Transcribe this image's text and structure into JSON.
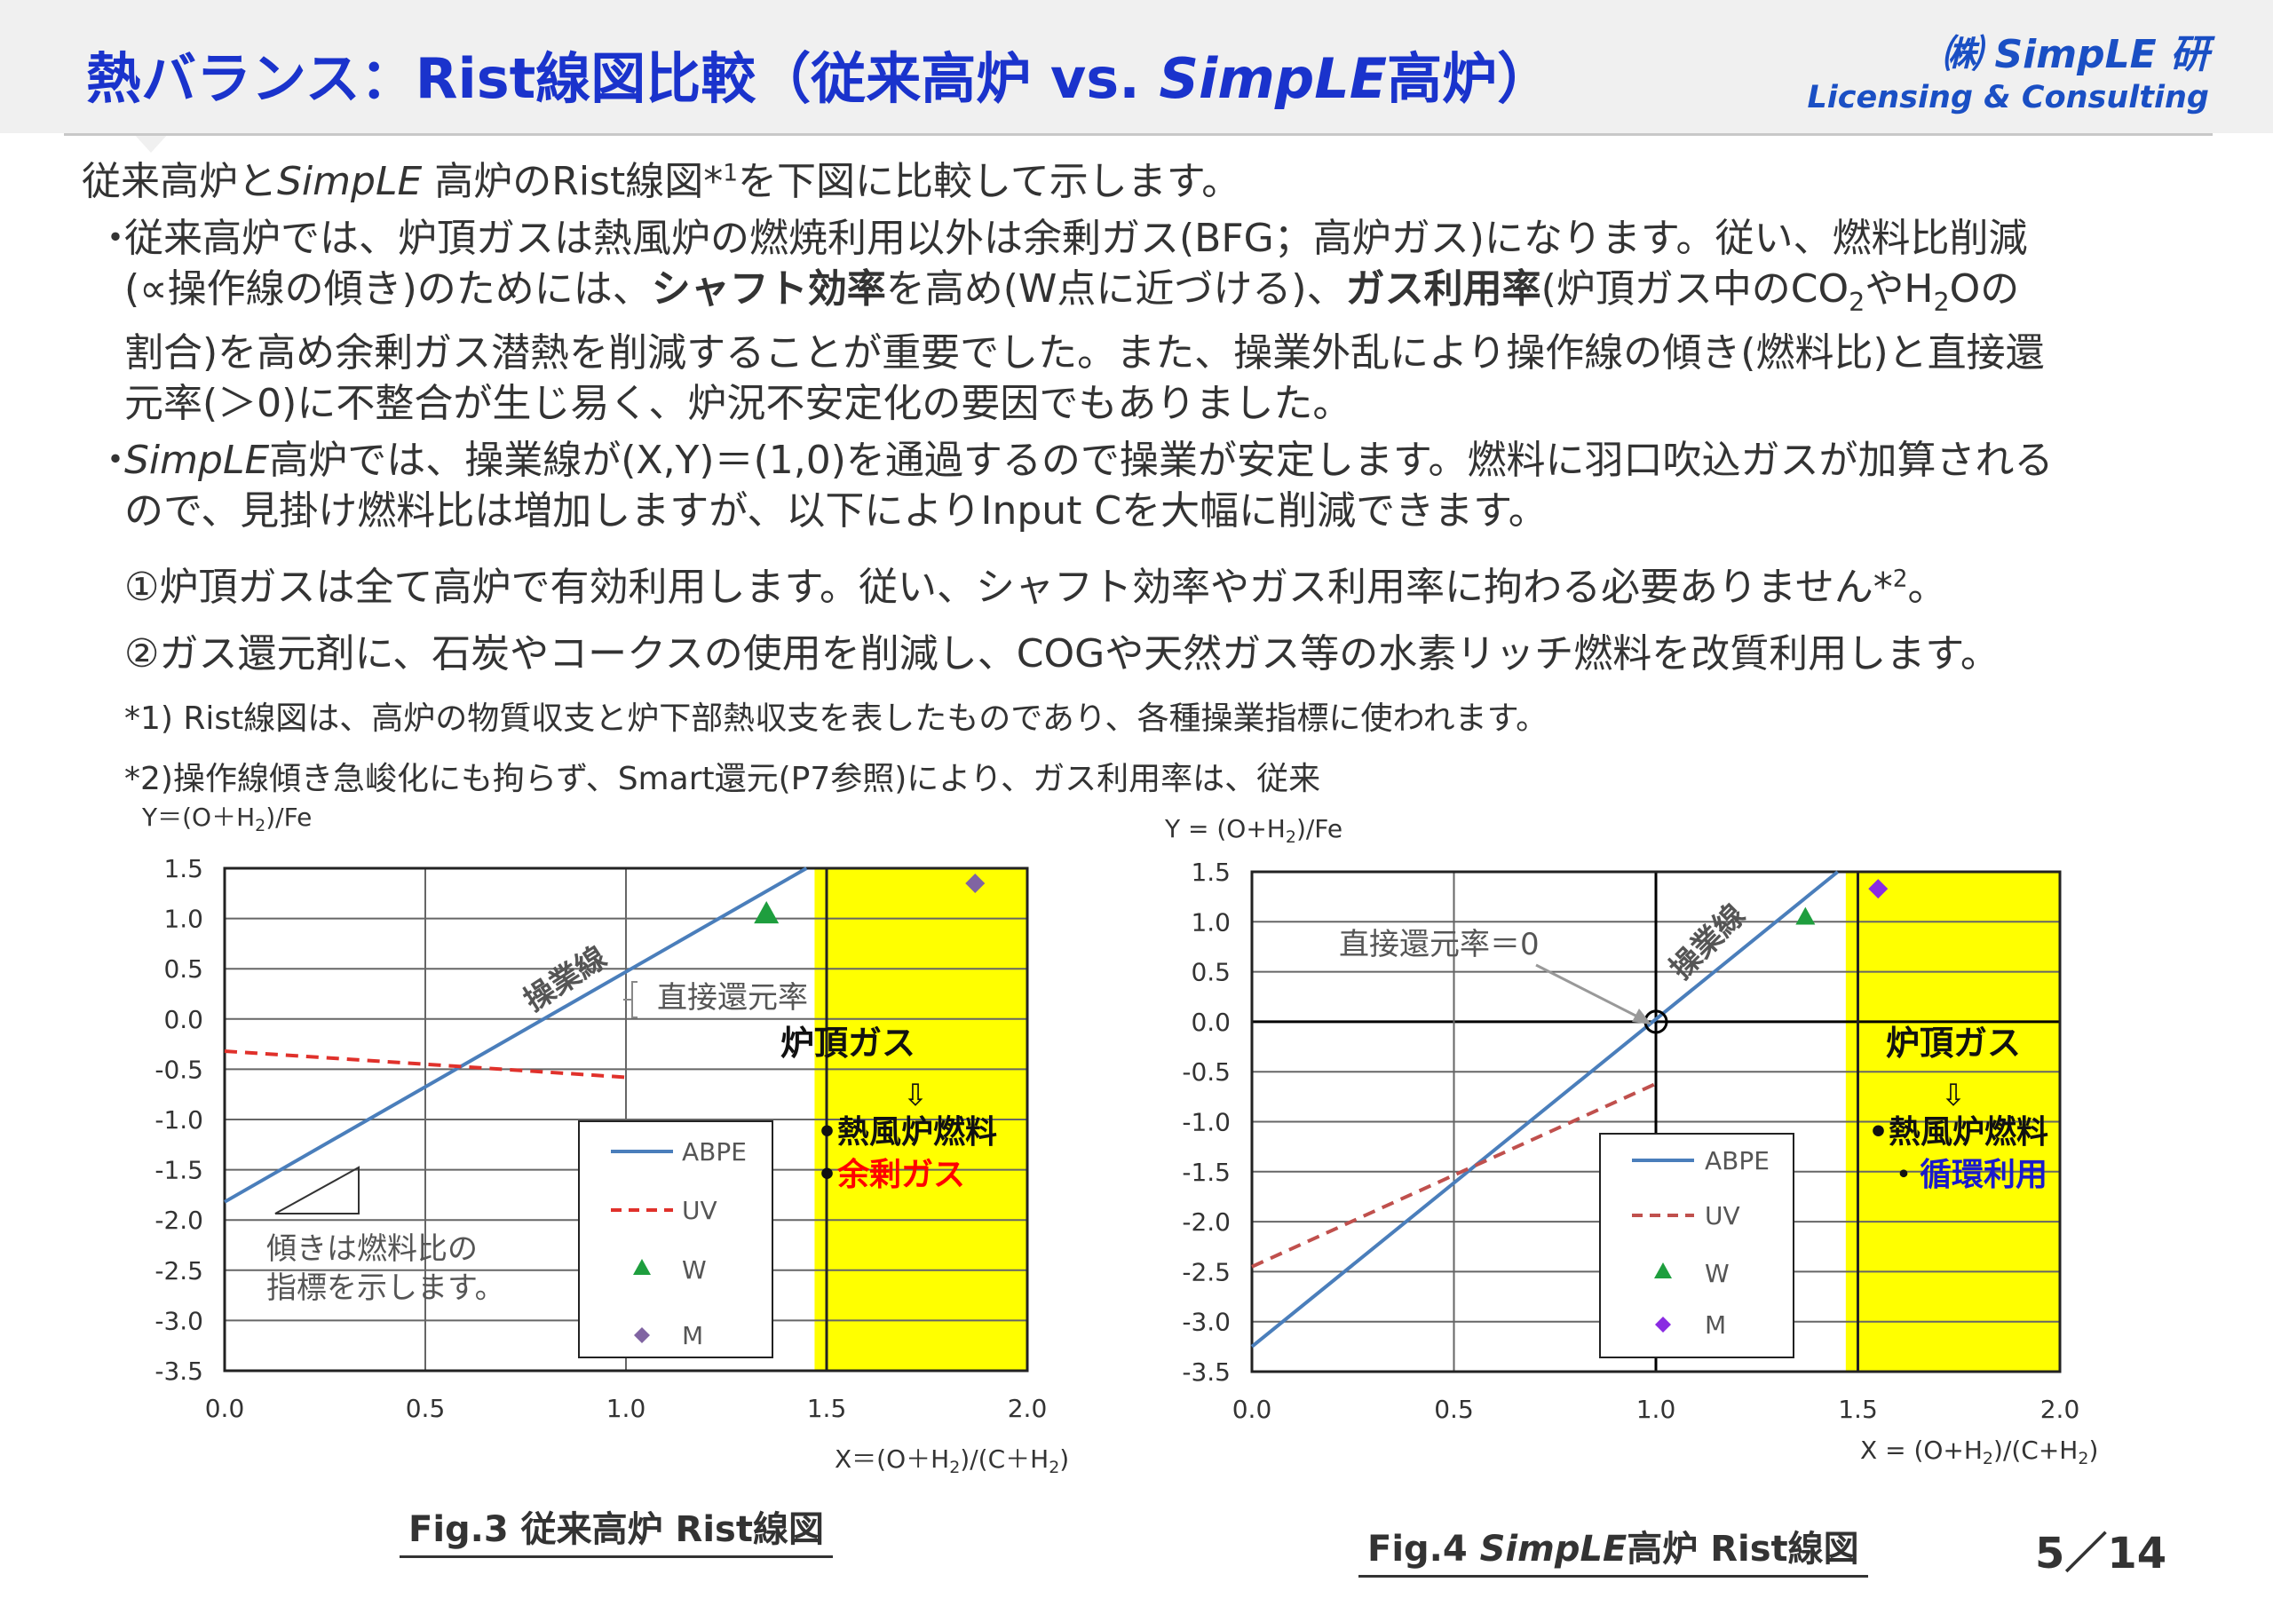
{
  "header": {
    "title_prefix": "熱バランス：Rist線図比較（従来高炉 vs. ",
    "title_italic": "SimpLE",
    "title_suffix": "高炉）",
    "logo_line1": "㈱ SimpLE 研",
    "logo_line2": "Licensing & Consulting"
  },
  "intro": {
    "pre": "従来高炉と",
    "italic": "SimpLE",
    "post": " 高炉のRist線図*",
    "sup": "1",
    "tail": "を下図に比較して示します。"
  },
  "bullet_mark": "・",
  "para1": {
    "l1": "従来高炉では、炉頂ガスは熱風炉の燃焼利用以外は余剰ガス(BFG；高炉ガス)になります。従い、燃料比削減",
    "l2_a": "(∝操作線の傾き)のためには、",
    "l2_b": "シャフト効率",
    "l2_c": "を高め(W点に近づける)、",
    "l2_d": "ガス利用率",
    "l2_e": "(炉頂ガス中のCO",
    "l2_sub1": "2",
    "l2_f": "やH",
    "l2_sub2": "2",
    "l2_g": "Oの",
    "l3": "割合)を高め余剰ガス潜熱を削減することが重要でした。また、操業外乱により操作線の傾き(燃料比)と直接還",
    "l4": "元率(＞0)に不整合が生じ易く、炉況不安定化の要因でもありました。"
  },
  "para2": {
    "l1_italic": "SimpLE",
    "l1_rest": "高炉では、操業線が(X,Y)＝(1,0)を通過するので操業が安定します。燃料に羽口吹込ガスが加算される",
    "l2": "ので、見掛け燃料比は増加しますが、以下によりInput Cを大幅に削減できます。"
  },
  "item1": {
    "text": "①炉頂ガスは全て高炉で有効利用します。従い、シャフト効率やガス利用率に拘わる必要ありません*",
    "sup": "2",
    "tail": "。"
  },
  "item2": "②ガス還元剤に、石炭やコークスの使用を削減し、COGや天然ガス等の水素リッチ燃料を改質利用します。",
  "note1": "*1) Rist線図は、高炉の物質収支と炉下部熱収支を表したものであり、各種操業指標に使われます。",
  "note2": "*2)操作線傾き急峻化にも拘らず、Smart還元(P7参照)により、ガス利用率は、従来",
  "legend_items": [
    "ABPE",
    "UV",
    "W",
    "M"
  ],
  "colors": {
    "title_blue": "#1a33cc",
    "abpe": "#4a7ebb",
    "uv": "#e0312b",
    "uv_fig4": "#c0504d",
    "w": "#1e9e3e",
    "m3": "#8064a2",
    "m4": "#8a2be2",
    "zone": "#ffff00",
    "red_text": "#ff0000",
    "blue_text": "#1a1acc"
  },
  "chart_data": [
    {
      "type": "line",
      "caption": "Fig.3 従来高炉 Rist線図",
      "xlabel_parts": [
        "X＝(O＋H",
        "2",
        ")/(C＋H",
        "2",
        ")"
      ],
      "ylabel_parts": [
        "Y＝(O＋H",
        "2",
        ")/Fe"
      ],
      "xlim": [
        0,
        2
      ],
      "ylim": [
        -3.5,
        1.5
      ],
      "xticks": [
        "0.0",
        "0.5",
        "1.0",
        "1.5",
        "2.0"
      ],
      "yticks": [
        "1.5",
        "1.0",
        "0.5",
        "0.0",
        "-0.5",
        "-1.0",
        "-1.5",
        "-2.0",
        "-2.5",
        "-3.0",
        "-3.5"
      ],
      "grid": true,
      "legend_position": "bottom-center",
      "series": [
        {
          "name": "ABPE",
          "kind": "line",
          "x": [
            0.0,
            1.45
          ],
          "y": [
            -1.82,
            1.5
          ]
        },
        {
          "name": "UV",
          "kind": "dashed",
          "x": [
            0.0,
            1.0
          ],
          "y": [
            -0.32,
            -0.58
          ]
        },
        {
          "name": "W",
          "kind": "triangle",
          "x": [
            1.35
          ],
          "y": [
            1.05
          ]
        },
        {
          "name": "M",
          "kind": "diamond",
          "x": [
            1.87
          ],
          "y": [
            1.35
          ]
        }
      ],
      "zone": {
        "x_from": 1.47,
        "x_to": 2.0,
        "boundary_x": 1.5
      },
      "annotations": {
        "sougyousen": "操業線",
        "chokusetsu": "直接還元率",
        "slope_text1": "傾きは燃料比の",
        "slope_text2": "指標を示します。",
        "zone_title": "炉頂ガス",
        "zone_arrow": "⇩",
        "zone_item1": "•熱風炉燃料",
        "zone_item2_bullet": "•",
        "zone_item2": "余剰ガス"
      }
    },
    {
      "type": "line",
      "caption_pre": "Fig.4 ",
      "caption_italic": "SimpLE",
      "caption_post": "高炉 Rist線図",
      "xlabel_parts": [
        "X = (O+H",
        "2",
        ")/(C+H",
        "2",
        ")"
      ],
      "ylabel_parts": [
        "Y = (O+H",
        "2",
        ")/Fe"
      ],
      "xlim": [
        0,
        2
      ],
      "ylim": [
        -3.5,
        1.5
      ],
      "xticks": [
        "0.0",
        "0.5",
        "1.0",
        "1.5",
        "2.0"
      ],
      "yticks": [
        "1.5",
        "1.0",
        "0.5",
        "0.0",
        "-0.5",
        "-1.0",
        "-1.5",
        "-2.0",
        "-2.5",
        "-3.0",
        "-3.5"
      ],
      "grid": true,
      "legend_position": "bottom-center",
      "series": [
        {
          "name": "ABPE",
          "kind": "line",
          "x": [
            0.0,
            1.45
          ],
          "y": [
            -3.25,
            1.5
          ]
        },
        {
          "name": "UV",
          "kind": "dashed",
          "x": [
            0.0,
            1.0
          ],
          "y": [
            -2.45,
            -0.62
          ]
        },
        {
          "name": "W",
          "kind": "triangle",
          "x": [
            1.37
          ],
          "y": [
            1.05
          ]
        },
        {
          "name": "M",
          "kind": "diamond",
          "x": [
            1.55
          ],
          "y": [
            1.33
          ]
        }
      ],
      "zone": {
        "x_from": 1.47,
        "x_to": 2.0,
        "boundary_x": 1.5
      },
      "annotations": {
        "sougyousen": "操業線",
        "chokusetsu": "直接還元率＝0",
        "zone_title": "炉頂ガス",
        "zone_arrow": "⇩",
        "zone_item1": "•熱風炉燃料",
        "zone_item2_bullet": "・",
        "zone_item2": "循環利用"
      }
    }
  ],
  "page_number": "5／14"
}
